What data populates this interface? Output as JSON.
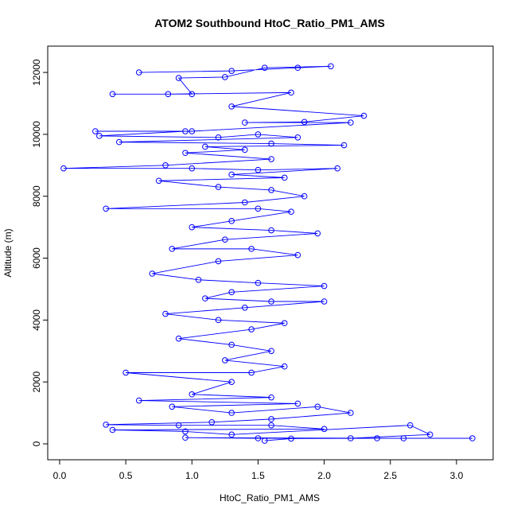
{
  "chart_data": {
    "type": "line",
    "title": "ATOM2 Southbound HtoC_Ratio_PM1_AMS",
    "x_label": "HtoC_Ratio_PM1_AMS",
    "y_label": "Altitude (m)",
    "color": "#0000ff",
    "markers": "open-circle",
    "x": [
      0.6,
      1.3,
      1.8,
      2.05,
      1.55,
      1.25,
      0.9,
      1.0,
      0.4,
      0.82,
      1.75,
      1.3,
      2.3,
      1.85,
      1.4,
      2.2,
      1.0,
      0.27,
      0.95,
      0.3,
      1.2,
      1.5,
      1.8,
      0.45,
      1.6,
      2.15,
      1.1,
      1.4,
      0.95,
      1.6,
      0.8,
      0.03,
      1.0,
      1.5,
      2.1,
      1.3,
      1.7,
      0.75,
      1.2,
      1.6,
      1.85,
      1.4,
      0.35,
      1.5,
      1.75,
      1.3,
      1.0,
      1.6,
      1.95,
      1.25,
      0.85,
      1.45,
      1.8,
      1.2,
      0.7,
      1.05,
      1.5,
      2.0,
      1.3,
      1.1,
      1.6,
      2.0,
      1.4,
      0.8,
      1.2,
      1.7,
      1.45,
      0.9,
      1.3,
      1.6,
      1.25,
      1.7,
      1.45,
      0.5,
      1.3,
      1.0,
      1.6,
      0.6,
      1.8,
      0.85,
      1.3,
      1.95,
      2.2,
      1.6,
      1.15,
      0.35,
      0.9,
      1.6,
      2.0,
      0.4,
      0.95,
      1.3,
      2.65,
      2.8,
      2.2,
      1.5,
      0.95,
      2.6,
      3.12,
      2.4,
      1.75,
      1.55
    ],
    "y": [
      12000,
      12050,
      12150,
      12200,
      12150,
      11850,
      11820,
      11300,
      11300,
      11300,
      11350,
      10900,
      10600,
      10400,
      10380,
      10380,
      10100,
      10100,
      10100,
      9950,
      9900,
      10000,
      9900,
      9750,
      9700,
      9650,
      9600,
      9500,
      9400,
      9200,
      9000,
      8900,
      8900,
      8850,
      8900,
      8700,
      8600,
      8500,
      8300,
      8200,
      8000,
      7800,
      7600,
      7600,
      7500,
      7200,
      7000,
      6900,
      6800,
      6600,
      6300,
      6300,
      6100,
      5900,
      5500,
      5300,
      5200,
      5100,
      4900,
      4700,
      4600,
      4600,
      4400,
      4200,
      4000,
      3900,
      3700,
      3400,
      3200,
      3000,
      2700,
      2500,
      2300,
      2300,
      2000,
      1600,
      1500,
      1400,
      1300,
      1200,
      1000,
      1200,
      1000,
      800,
      700,
      620,
      600,
      600,
      480,
      450,
      400,
      300,
      600,
      300,
      180,
      180,
      200,
      180,
      180,
      180,
      170,
      100
    ],
    "xlim": [
      -0.09,
      3.277
    ],
    "ylim": [
      -514,
      12850
    ],
    "xticks": [
      {
        "value": 0,
        "label": "0.0"
      },
      0.5,
      {
        "value": 1,
        "label": "1.0"
      },
      1.5,
      {
        "value": 2,
        "label": "2.0"
      },
      2.5,
      {
        "value": 3,
        "label": "3.0"
      }
    ],
    "yticks": [
      0,
      2000,
      4000,
      6000,
      8000,
      10000,
      12000
    ]
  }
}
